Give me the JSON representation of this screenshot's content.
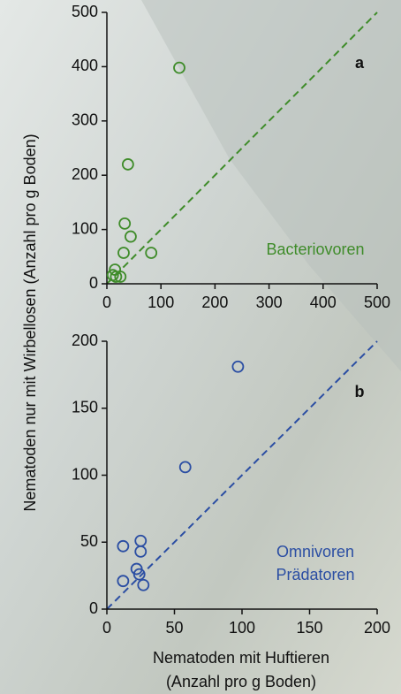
{
  "chart_data": [
    {
      "type": "scatter",
      "panel_label": "a",
      "annotation": [
        "Bacteriovoren"
      ],
      "ylabel": "Nematoden nur mit Wirbellosen (Anzahl pro g Boden)",
      "color": "#3f8c2a",
      "x": [
        134,
        39,
        33,
        44,
        31,
        82,
        15,
        11,
        25,
        17
      ],
      "values": [
        398,
        220,
        111,
        87,
        57,
        57,
        26,
        16,
        13,
        13
      ],
      "xlim": [
        0,
        500
      ],
      "ylim": [
        0,
        500
      ],
      "xticks": [
        0,
        100,
        200,
        300,
        400,
        500
      ],
      "yticks": [
        0,
        100,
        200,
        300,
        400,
        500
      ]
    },
    {
      "type": "scatter",
      "panel_label": "b",
      "annotation": [
        "Omnivoren",
        "Prädatoren"
      ],
      "xlabel": [
        "Nematoden mit Huftieren",
        "(Anzahl pro g Boden)"
      ],
      "color": "#2b4ea3",
      "x": [
        97,
        58,
        12,
        25,
        25,
        22,
        24,
        27,
        12
      ],
      "values": [
        181,
        106,
        47,
        51,
        43,
        30,
        26,
        18,
        21
      ],
      "xlim": [
        0,
        200
      ],
      "ylim": [
        0,
        200
      ],
      "xticks": [
        0,
        50,
        100,
        150,
        200
      ],
      "yticks": [
        0,
        50,
        100,
        150,
        200
      ]
    }
  ]
}
